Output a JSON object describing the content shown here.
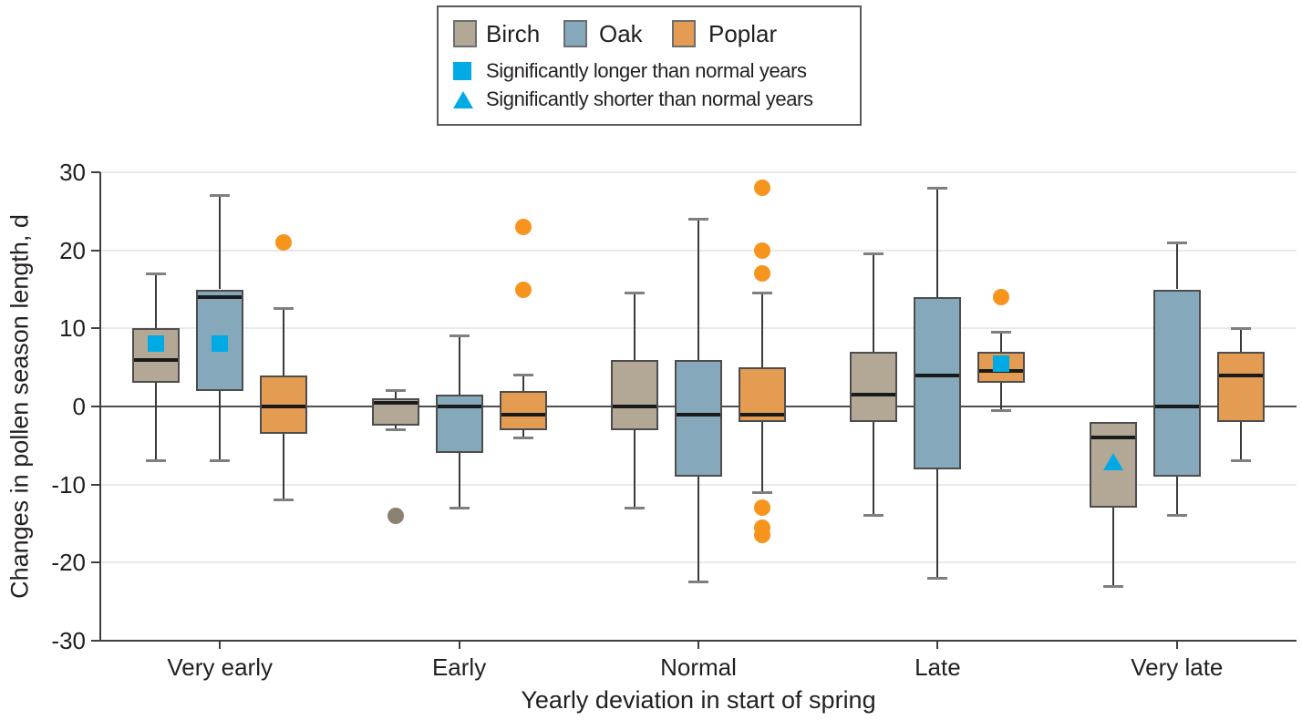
{
  "figure": {
    "background": "#ffffff",
    "text_color": "#231f20"
  },
  "chart_data": {
    "type": "box",
    "title": "",
    "xlabel": "Yearly deviation in start of spring",
    "ylabel": "Changes in pollen season length, d",
    "ylim": [
      -30,
      30
    ],
    "yticks": [
      30,
      20,
      10,
      0,
      -10,
      -20,
      -30
    ],
    "categories": [
      "Very early",
      "Early",
      "Normal",
      "Late",
      "Very late"
    ],
    "grid": "horizontal light gridlines, dark zero line, legend top-center boxed",
    "series": [
      {
        "name": "Birch",
        "color": "#b3a896"
      },
      {
        "name": "Oak",
        "color": "#85a9bb"
      },
      {
        "name": "Poplar",
        "color": "#e39c52"
      }
    ],
    "marker_legend": [
      {
        "shape": "square",
        "label": "Significantly longer than normal years",
        "color": "#00aae5"
      },
      {
        "shape": "triangle",
        "label": "Significantly shorter than normal years",
        "color": "#00aae5"
      }
    ],
    "colors": {
      "birch": "#b3a896",
      "oak": "#85a9bb",
      "poplar": "#e39c52",
      "outlier_orange": "#f7941e",
      "outlier_gray": "#8a8170",
      "significant_blue": "#00aae5",
      "box_border": "#4d4d4d",
      "median": "#1a1a1a",
      "whisker_line": "#3a3a3a",
      "whisker_cap": "#7f7f7f",
      "gridline": "#e9e9e9",
      "zero_line": "#4d4d4d",
      "axis_line": "#3f3f3f"
    },
    "groups": [
      {
        "label": "Very early",
        "boxes": [
          {
            "species": "Birch",
            "lo": -7,
            "q1": 3,
            "med": 6,
            "q3": 10,
            "hi": 17,
            "marker": {
              "shape": "square",
              "v": 8
            }
          },
          {
            "species": "Oak",
            "lo": -7,
            "q1": 2,
            "med": 14,
            "q3": 15,
            "hi": 27,
            "marker": {
              "shape": "square",
              "v": 8
            }
          },
          {
            "species": "Poplar",
            "lo": -12,
            "q1": -3.5,
            "med": 0,
            "q3": 4,
            "hi": 12.5,
            "outliers": [
              {
                "v": 21,
                "c": "orange"
              }
            ]
          }
        ]
      },
      {
        "label": "Early",
        "boxes": [
          {
            "species": "Birch",
            "lo": -3,
            "q1": -2.5,
            "med": 0.5,
            "q3": 1,
            "hi": 2,
            "outliers": [
              {
                "v": -14,
                "c": "gray"
              }
            ]
          },
          {
            "species": "Oak",
            "lo": -13,
            "q1": -6,
            "med": 0,
            "q3": 1.5,
            "hi": 9
          },
          {
            "species": "Poplar",
            "lo": -4,
            "q1": -3,
            "med": -1,
            "q3": 2,
            "hi": 4,
            "outliers": [
              {
                "v": 23,
                "c": "orange"
              },
              {
                "v": 15,
                "c": "orange"
              }
            ]
          }
        ]
      },
      {
        "label": "Normal",
        "boxes": [
          {
            "species": "Birch",
            "lo": -13,
            "q1": -3,
            "med": 0,
            "q3": 6,
            "hi": 14.5
          },
          {
            "species": "Oak",
            "lo": -22.5,
            "q1": -9,
            "med": -1,
            "q3": 6,
            "hi": 24
          },
          {
            "species": "Poplar",
            "lo": -11,
            "q1": -2,
            "med": -1,
            "q3": 5,
            "hi": 14.5,
            "outliers": [
              {
                "v": 28,
                "c": "orange"
              },
              {
                "v": 20,
                "c": "orange"
              },
              {
                "v": 17,
                "c": "orange"
              },
              {
                "v": -13,
                "c": "orange"
              },
              {
                "v": -15.5,
                "c": "orange"
              },
              {
                "v": -16.5,
                "c": "orange"
              }
            ]
          }
        ]
      },
      {
        "label": "Late",
        "boxes": [
          {
            "species": "Birch",
            "lo": -14,
            "q1": -2,
            "med": 1.5,
            "q3": 7,
            "hi": 19.5
          },
          {
            "species": "Oak",
            "lo": -22,
            "q1": -8,
            "med": 4,
            "q3": 14,
            "hi": 28
          },
          {
            "species": "Poplar",
            "lo": -0.5,
            "q1": 3,
            "med": 4.5,
            "q3": 7,
            "hi": 9.5,
            "marker": {
              "shape": "square",
              "v": 5.5
            },
            "outliers": [
              {
                "v": 14,
                "c": "orange"
              }
            ]
          }
        ]
      },
      {
        "label": "Very late",
        "boxes": [
          {
            "species": "Birch",
            "lo": -23,
            "q1": -13,
            "med": -4,
            "q3": -2,
            "hi": null,
            "marker": {
              "shape": "triangle",
              "v": -7
            }
          },
          {
            "species": "Oak",
            "lo": -14,
            "q1": -9,
            "med": 0,
            "q3": 15,
            "hi": 21
          },
          {
            "species": "Poplar",
            "lo": -7,
            "q1": -2,
            "med": 4,
            "q3": 7,
            "hi": 10
          }
        ]
      }
    ]
  }
}
